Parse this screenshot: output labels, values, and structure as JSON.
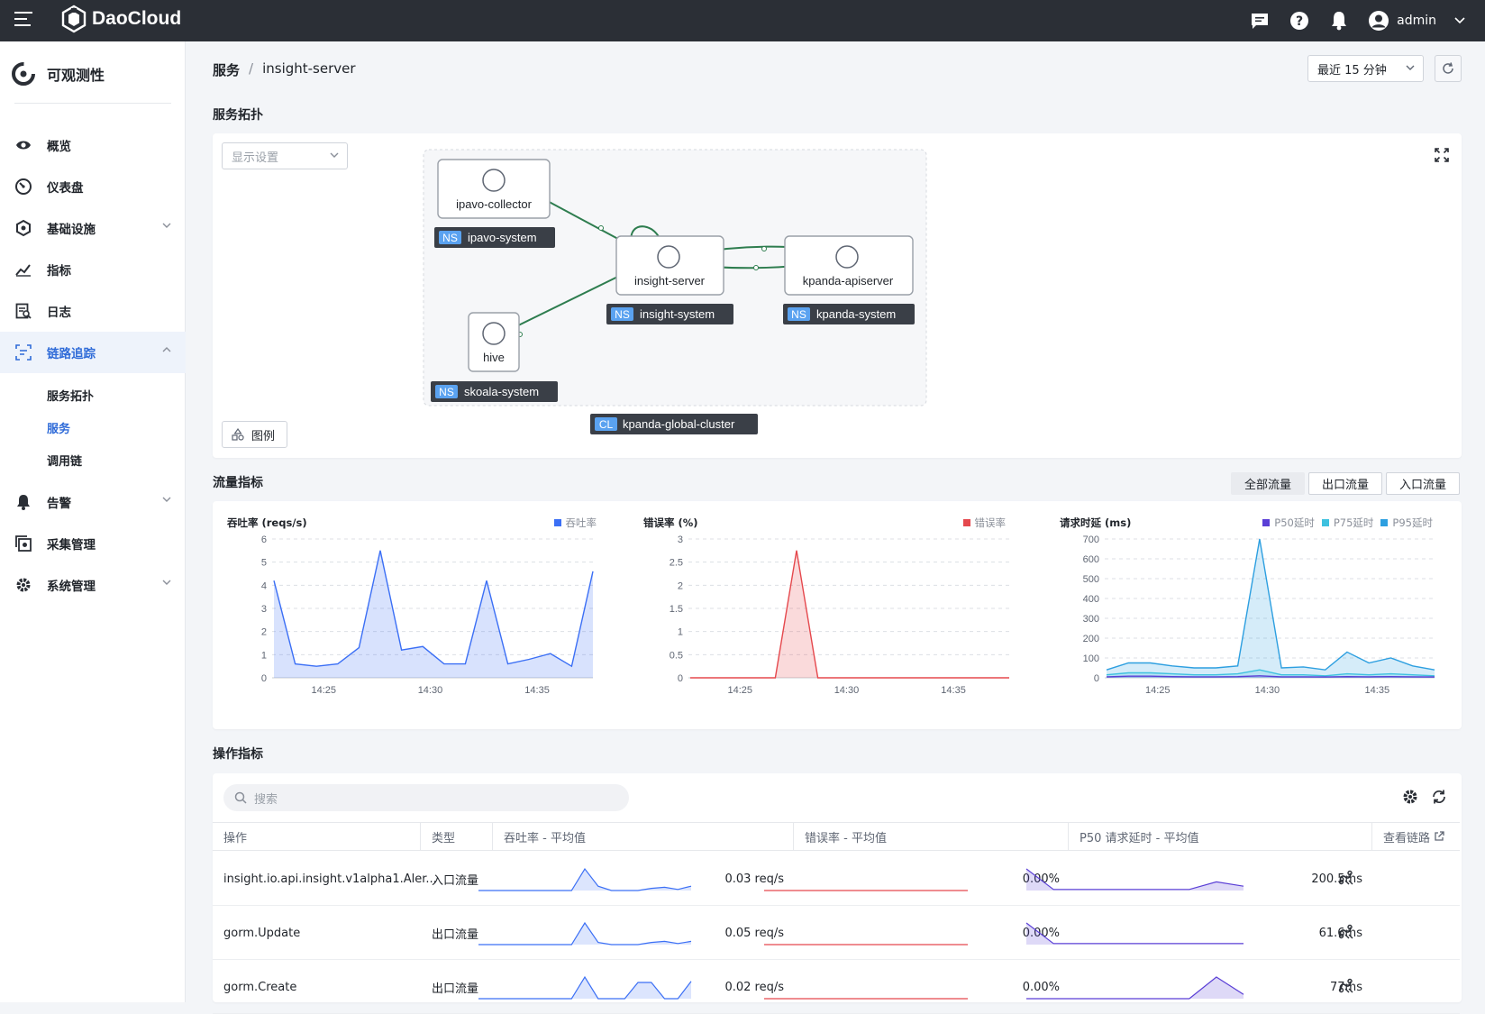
{
  "header": {
    "brand": "DaoCloud",
    "user": "admin"
  },
  "sidebar": {
    "app_title": "可观测性",
    "items": [
      {
        "label": "概览",
        "icon": "eye-icon"
      },
      {
        "label": "仪表盘",
        "icon": "gauge-icon"
      },
      {
        "label": "基础设施",
        "icon": "infrastructure-icon",
        "expandable": true
      },
      {
        "label": "指标",
        "icon": "metrics-icon"
      },
      {
        "label": "日志",
        "icon": "log-icon"
      },
      {
        "label": "链路追踪",
        "icon": "trace-icon",
        "expanded": true
      },
      {
        "label": "告警",
        "icon": "bell-icon",
        "expandable": true
      },
      {
        "label": "采集管理",
        "icon": "collector-icon"
      },
      {
        "label": "系统管理",
        "icon": "settings-icon",
        "expandable": true
      }
    ],
    "sub_items": [
      "服务拓扑",
      "服务",
      "调用链"
    ]
  },
  "breadcrumb": {
    "root": "服务",
    "current": "insight-server"
  },
  "time_range": {
    "selected": "最近 15 分钟"
  },
  "topology": {
    "section_title": "服务拓扑",
    "display_placeholder": "显示设置",
    "legend_button": "图例",
    "nodes": [
      {
        "name": "ipavo-collector",
        "ns_tag": "NS",
        "ns": "ipavo-system"
      },
      {
        "name": "insight-server",
        "ns_tag": "NS",
        "ns": "insight-system"
      },
      {
        "name": "kpanda-apiserver",
        "ns_tag": "NS",
        "ns": "kpanda-system"
      },
      {
        "name": "hive",
        "ns_tag": "NS",
        "ns": "skoala-system"
      }
    ],
    "cluster": {
      "tag": "CL",
      "name": "kpanda-global-cluster"
    }
  },
  "traffic": {
    "section_title": "流量指标",
    "tabs": [
      "全部流量",
      "出口流量",
      "入口流量"
    ],
    "active_tab": "全部流量"
  },
  "chart_data": [
    {
      "type": "area",
      "title": "吞吐率 (reqs/s)",
      "legend": [
        "吞吐率"
      ],
      "x_ticks": [
        "14:25",
        "14:30",
        "14:35"
      ],
      "y_ticks": [
        0,
        1,
        2,
        3,
        4,
        5,
        6
      ],
      "ylim": [
        0,
        6
      ],
      "series": [
        {
          "name": "吞吐率",
          "color": "#3b6ff5",
          "values": [
            4.2,
            0.6,
            0.5,
            0.6,
            1.3,
            5.5,
            1.2,
            1.35,
            0.6,
            0.6,
            4.2,
            0.6,
            0.8,
            1.05,
            0.5,
            4.6
          ]
        }
      ]
    },
    {
      "type": "area",
      "title": "错误率 (%)",
      "legend": [
        "错误率"
      ],
      "x_ticks": [
        "14:25",
        "14:30",
        "14:35"
      ],
      "y_ticks": [
        0,
        0.5,
        1,
        1.5,
        2,
        2.5,
        3
      ],
      "ylim": [
        0,
        3
      ],
      "series": [
        {
          "name": "错误率",
          "color": "#e5484d",
          "values": [
            0,
            0,
            0,
            0,
            0,
            2.75,
            0,
            0,
            0,
            0,
            0,
            0,
            0,
            0,
            0,
            0
          ]
        }
      ]
    },
    {
      "type": "area",
      "title": "请求时延 (ms)",
      "legend": [
        "P50延时",
        "P75延时",
        "P95延时"
      ],
      "x_ticks": [
        "14:25",
        "14:30",
        "14:35"
      ],
      "y_ticks": [
        0,
        100,
        200,
        300,
        400,
        500,
        600,
        700
      ],
      "ylim": [
        0,
        700
      ],
      "series": [
        {
          "name": "P95延时",
          "color": "#2d9fe0",
          "values": [
            40,
            75,
            75,
            60,
            50,
            50,
            60,
            700,
            50,
            55,
            40,
            130,
            75,
            100,
            60,
            40
          ]
        },
        {
          "name": "P75延时",
          "color": "#3ec1df",
          "values": [
            15,
            25,
            25,
            20,
            15,
            15,
            20,
            40,
            15,
            15,
            10,
            20,
            15,
            20,
            15,
            10
          ]
        },
        {
          "name": "P50延时",
          "color": "#5a3fd6",
          "values": [
            5,
            8,
            8,
            6,
            5,
            5,
            6,
            10,
            5,
            5,
            4,
            6,
            5,
            6,
            5,
            4
          ]
        }
      ]
    }
  ],
  "operations": {
    "section_title": "操作指标",
    "search_placeholder": "搜索",
    "columns": [
      "操作",
      "类型",
      "吞吐率 - 平均值",
      "错误率 - 平均值",
      "P50 请求延时 - 平均值",
      "查看链路"
    ],
    "rows": [
      {
        "name": "insight.io.api.insight.v1alpha1.Aler...",
        "type": "入口流量",
        "throughput": "0.03 req/s",
        "error": "0.00%",
        "latency": "200.5ms",
        "tp_spark": [
          0,
          0,
          0,
          0,
          0,
          0,
          0,
          0,
          1,
          0.2,
          0,
          0,
          0,
          0.1,
          0.15,
          0.05,
          0.2
        ],
        "lat_spark": [
          1,
          0.05,
          0.05,
          0.05,
          0.05,
          0.05,
          0.05,
          0.4,
          0.2
        ]
      },
      {
        "name": "gorm.Update",
        "type": "出口流量",
        "throughput": "0.05 req/s",
        "error": "0.00%",
        "latency": "61.6ms",
        "tp_spark": [
          0,
          0,
          0,
          0,
          0,
          0,
          0,
          0,
          1,
          0.1,
          0,
          0,
          0,
          0.1,
          0.15,
          0.05,
          0.15
        ],
        "lat_spark": [
          1,
          0.05,
          0.05,
          0.05,
          0.05,
          0.05,
          0.05,
          0.05,
          0.05
        ]
      },
      {
        "name": "gorm.Create",
        "type": "出口流量",
        "throughput": "0.02 req/s",
        "error": "0.00%",
        "latency": "77ms",
        "tp_spark": [
          0,
          0,
          0,
          0,
          0,
          0,
          0,
          0,
          1,
          0,
          0,
          0,
          0.75,
          0.75,
          0,
          0,
          0.8
        ],
        "lat_spark": [
          0,
          0,
          0,
          0,
          0,
          0,
          0,
          1,
          0.2
        ]
      }
    ]
  }
}
